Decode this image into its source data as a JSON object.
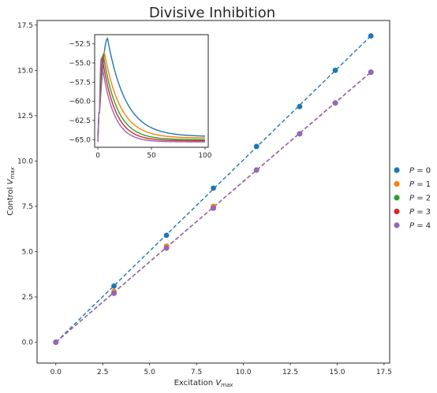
{
  "chart_data": [
    {
      "type": "scatter",
      "title": "Divisive Inhibition",
      "xlabel": "Excitation",
      "xlabel_sub": "max",
      "ylabel": "Control",
      "ylabel_sub": "max",
      "xlim": [
        -1.0,
        17.8
      ],
      "ylim": [
        -1.15,
        17.75
      ],
      "xticks": [
        0.0,
        2.5,
        5.0,
        7.5,
        10.0,
        12.5,
        15.0,
        17.5
      ],
      "xtick_labels": [
        "0.0",
        "2.5",
        "5.0",
        "7.5",
        "10.0",
        "12.5",
        "15.0",
        "17.5"
      ],
      "yticks": [
        0.0,
        2.5,
        5.0,
        7.5,
        10.0,
        12.5,
        15.0,
        17.5
      ],
      "ytick_labels": [
        "0.0",
        "2.5",
        "5.0",
        "7.5",
        "10.0",
        "12.5",
        "15.0",
        "17.5"
      ],
      "x": [
        0.0,
        3.1,
        5.9,
        8.4,
        10.7,
        13.0,
        14.9,
        16.8
      ],
      "series": [
        {
          "name": "P = 0",
          "label_var": "P",
          "label_val": "0",
          "color": "#1f77b4",
          "values": [
            0.0,
            3.1,
            5.9,
            8.5,
            10.8,
            13.0,
            15.0,
            16.9
          ],
          "fit_end": 16.9
        },
        {
          "name": "P = 1",
          "label_var": "P",
          "label_val": "1",
          "color": "#ff7f0e",
          "values": [
            0.0,
            2.8,
            5.3,
            7.5,
            9.5,
            11.5,
            13.2,
            14.9
          ],
          "fit_end": 14.9
        },
        {
          "name": "P = 2",
          "label_var": "P",
          "label_val": "2",
          "color": "#2ca02c",
          "values": [
            0.0,
            2.7,
            5.2,
            7.4,
            9.5,
            11.5,
            13.2,
            14.9
          ],
          "fit_end": 14.9
        },
        {
          "name": "P = 3",
          "label_var": "P",
          "label_val": "3",
          "color": "#d62728",
          "values": [
            0.0,
            2.7,
            5.2,
            7.4,
            9.5,
            11.5,
            13.2,
            14.9
          ],
          "fit_end": 14.9
        },
        {
          "name": "P = 4",
          "label_var": "P",
          "label_val": "4",
          "color": "#9467bd",
          "values": [
            0.0,
            2.7,
            5.2,
            7.4,
            9.5,
            11.5,
            13.2,
            14.9
          ],
          "fit_end": 14.9
        }
      ],
      "legend": "right"
    },
    {
      "type": "line",
      "title": "",
      "xlim": [
        -3,
        103
      ],
      "ylim": [
        -66.0,
        -51.3
      ],
      "xticks": [
        0,
        50,
        100
      ],
      "xtick_labels": [
        "0",
        "50",
        "100"
      ],
      "yticks": [
        -65.0,
        -62.5,
        -60.0,
        -57.5,
        -55.0,
        -52.5
      ],
      "ytick_labels": [
        "−65.0",
        "−62.5",
        "−60.0",
        "−57.5",
        "−55.0",
        "−52.5"
      ],
      "traces": [
        {
          "color": "#1f77b4",
          "peak": -51.8,
          "peak_t": 9,
          "tau": 17,
          "rest": -64.5,
          "settle": -64.6
        },
        {
          "color": "#ff7f0e",
          "peak": -53.6,
          "peak_t": 6,
          "tau": 15,
          "rest": -64.9,
          "settle": -64.8
        },
        {
          "color": "#2ca02c",
          "peak": -53.9,
          "peak_t": 5,
          "tau": 13,
          "rest": -65.1,
          "settle": -65.0
        },
        {
          "color": "#d62728",
          "peak": -54.2,
          "peak_t": 4,
          "tau": 12,
          "rest": -65.2,
          "settle": -65.15
        },
        {
          "color": "#9467bd",
          "peak": -54.4,
          "peak_t": 3,
          "tau": 11,
          "rest": -65.3,
          "settle": -65.3
        }
      ]
    }
  ]
}
